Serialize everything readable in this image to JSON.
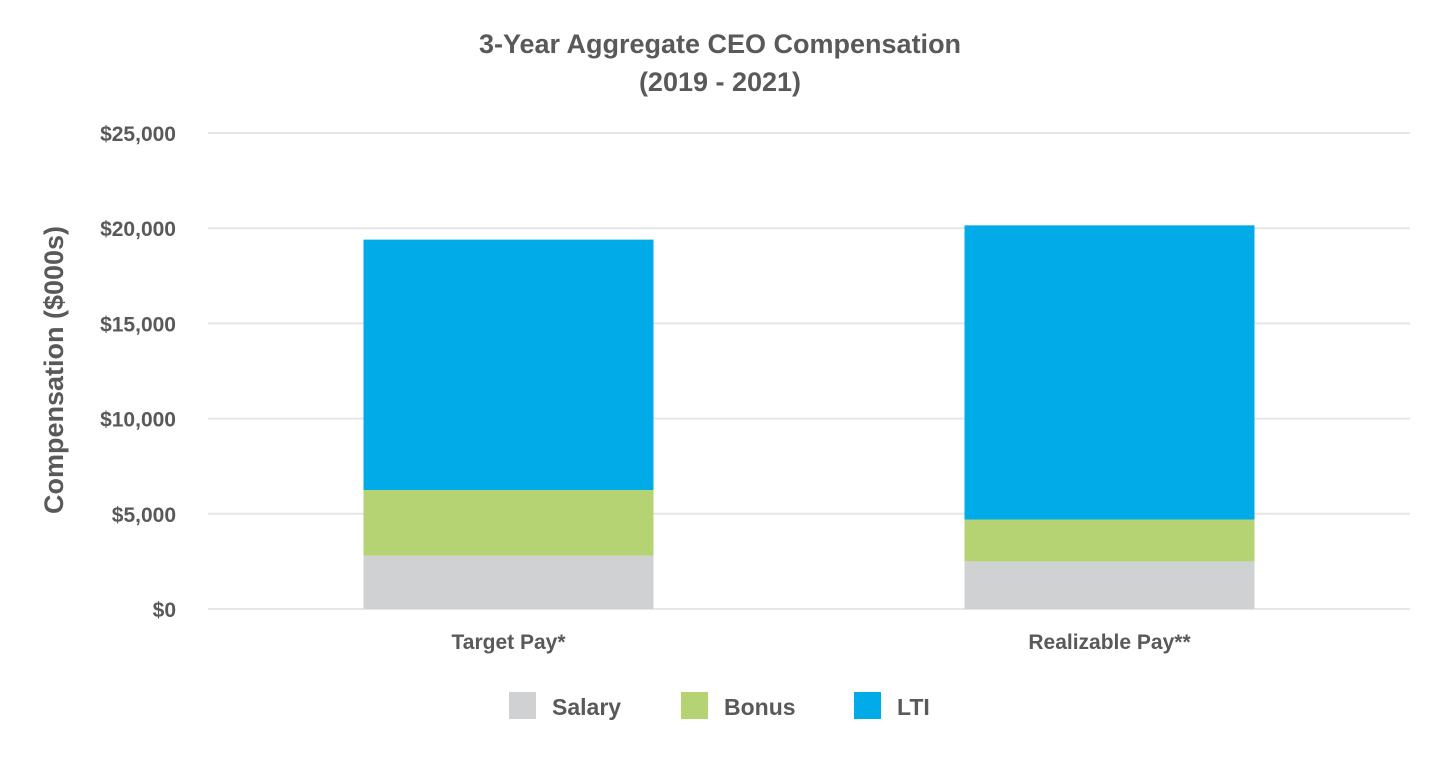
{
  "chart_data": {
    "type": "bar",
    "stacked": true,
    "title": "3-Year Aggregate CEO Compensation",
    "subtitle": "(2019 - 2021)",
    "xlabel": "",
    "ylabel": "Compensation ($000s)",
    "ylim": [
      0,
      25000
    ],
    "yticks": [
      0,
      5000,
      10000,
      15000,
      20000,
      25000
    ],
    "ytick_labels": [
      "$0",
      "$5,000",
      "$10,000",
      "$15,000",
      "$20,000",
      "$25,000"
    ],
    "grid": true,
    "legend_position": "bottom",
    "categories": [
      "Target Pay*",
      "Realizable Pay**"
    ],
    "series": [
      {
        "name": "Salary",
        "color": "#d0d1d3",
        "values": [
          2800,
          2500
        ]
      },
      {
        "name": "Bonus",
        "color": "#b5d372",
        "values": [
          3450,
          2200
        ]
      },
      {
        "name": "LTI",
        "color": "#00abe8",
        "values": [
          13150,
          15450
        ]
      }
    ]
  }
}
